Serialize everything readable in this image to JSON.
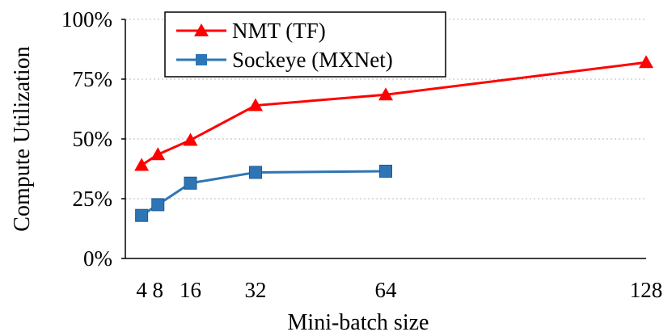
{
  "chart_data": {
    "type": "line",
    "title": "",
    "xlabel": "Mini-batch size",
    "ylabel": "Compute Utilization",
    "x": [
      4,
      8,
      16,
      32,
      64,
      128
    ],
    "xlim": [
      0,
      128
    ],
    "ylim": [
      0,
      100
    ],
    "x_tick_labels": [
      "4",
      "8",
      "16",
      "32",
      "64",
      "128"
    ],
    "y_ticks": [
      0,
      25,
      50,
      75,
      100
    ],
    "y_tick_labels": [
      "0%",
      "25%",
      "50%",
      "75%",
      "100%"
    ],
    "grid": "horizontal dotted",
    "legend_position": "top-left",
    "series": [
      {
        "name": "NMT (TF)",
        "color": "#ff0000",
        "marker": "triangle",
        "x": [
          4,
          8,
          16,
          32,
          64,
          128
        ],
        "values": [
          39,
          43.5,
          49.5,
          64,
          68.5,
          82
        ]
      },
      {
        "name": "Sockeye (MXNet)",
        "color": "#2e75b6",
        "marker": "square",
        "x": [
          4,
          8,
          16,
          32,
          64
        ],
        "values": [
          18,
          22.5,
          31.5,
          36,
          36.5
        ]
      }
    ]
  }
}
